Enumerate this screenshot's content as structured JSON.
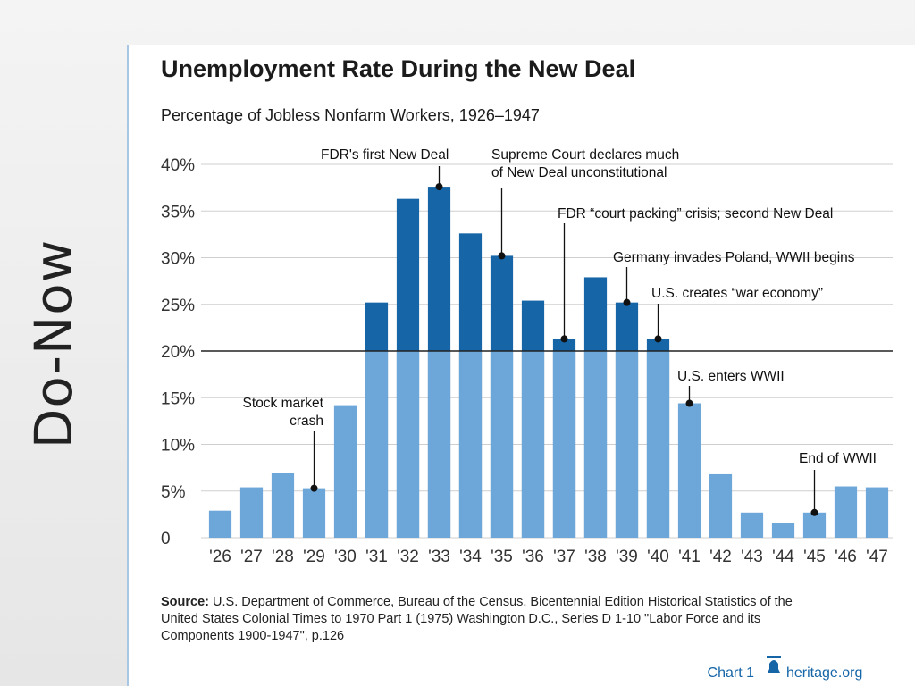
{
  "slide": {
    "title": "Do-Now"
  },
  "chart_data": {
    "type": "bar",
    "title": "Unemployment Rate During the New Deal",
    "subtitle": "Percentage of Jobless Nonfarm Workers, 1926–1947",
    "categories": [
      "'26",
      "'27",
      "'28",
      "'29",
      "'30",
      "'31",
      "'32",
      "'33",
      "'34",
      "'35",
      "'36",
      "'37",
      "'38",
      "'39",
      "'40",
      "'41",
      "'42",
      "'43",
      "'44",
      "'45",
      "'46",
      "'47"
    ],
    "values": [
      2.9,
      5.4,
      6.9,
      5.3,
      14.2,
      25.2,
      36.3,
      37.6,
      32.6,
      30.2,
      25.4,
      21.3,
      27.9,
      25.2,
      21.3,
      14.4,
      6.8,
      2.7,
      1.6,
      2.7,
      5.5,
      5.4
    ],
    "new_deal_range": [
      "'31",
      "'40"
    ],
    "ylim": [
      0,
      40
    ],
    "yticks": [
      {
        "value": 0,
        "label": "0"
      },
      {
        "value": 5,
        "label": "5%"
      },
      {
        "value": 10,
        "label": "10%"
      },
      {
        "value": 15,
        "label": "15%"
      },
      {
        "value": 20,
        "label": "20%"
      },
      {
        "value": 25,
        "label": "25%"
      },
      {
        "value": 30,
        "label": "30%"
      },
      {
        "value": 35,
        "label": "35%"
      },
      {
        "value": 40,
        "label": "40%"
      }
    ],
    "reference_line": 20,
    "grid": true,
    "colors": {
      "early_late": "#6da7da",
      "new_deal": "#1565a7",
      "grid": "#cfcfcf",
      "annotation": "#111111"
    },
    "annotations": [
      {
        "category": "'29",
        "lines": [
          "Stock market",
          "crash"
        ]
      },
      {
        "category": "'33",
        "lines": [
          "FDR's first New Deal"
        ]
      },
      {
        "category": "'35",
        "lines": [
          "Supreme Court declares much",
          "of New Deal unconstitutional"
        ]
      },
      {
        "category": "'37",
        "lines": [
          "FDR “court packing” crisis; second New Deal"
        ]
      },
      {
        "category": "'39",
        "lines": [
          "Germany invades Poland, WWII begins"
        ]
      },
      {
        "category": "'40",
        "lines": [
          "U.S. creates “war economy”"
        ]
      },
      {
        "category": "'41",
        "lines": [
          "U.S. enters WWII"
        ]
      },
      {
        "category": "'45",
        "lines": [
          "End of WWII"
        ]
      }
    ],
    "source_label": "Source:",
    "source_text": " U.S. Department of Commerce, Bureau of the Census, Bicentennial Edition Historical Statistics of the United States Colonial Times to 1970 Part 1 (1975) Washington D.C., Series D 1-10 \"Labor Force and its Components 1900-1947\", p.126",
    "footer": {
      "chart_label": "Chart 1",
      "brand": "heritage.org",
      "brand_icon": "bell-icon"
    }
  }
}
